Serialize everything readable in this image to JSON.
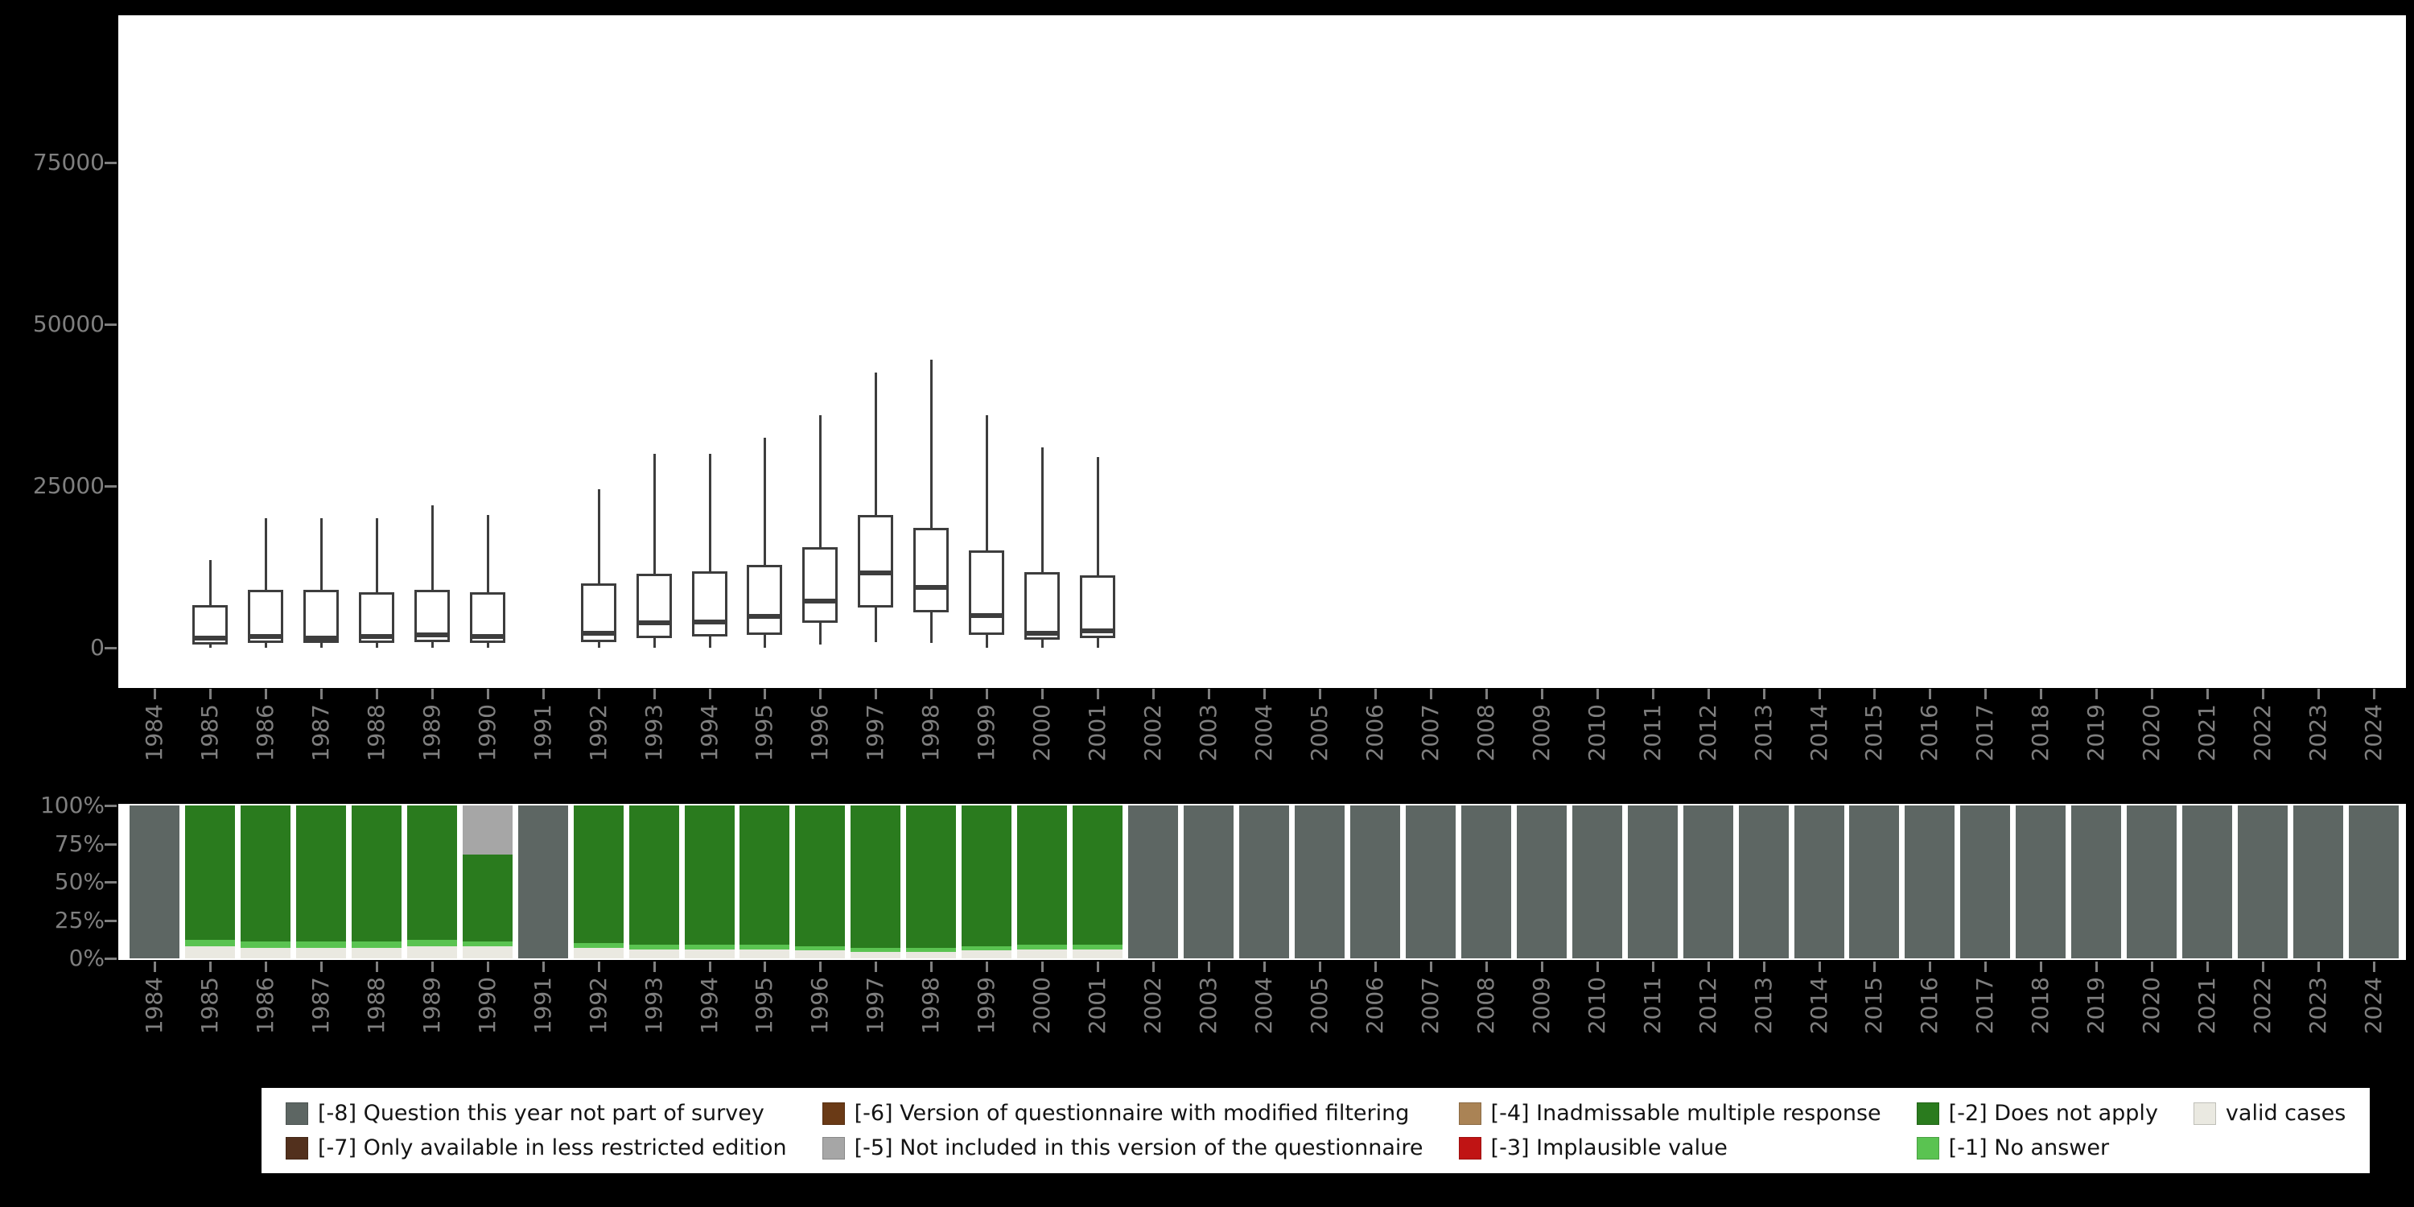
{
  "colors": {
    "page_background": "#000000",
    "panel_bg": "#ffffff",
    "axis_text": "#7f7f7f",
    "box_stroke": "#3d3d3d"
  },
  "legend": {
    "items": [
      {
        "code": "-8",
        "label": "[-8] Question this year not part of survey",
        "color": "#5d6663"
      },
      {
        "code": "-7",
        "label": "[-7] Only available in less restricted edition",
        "color": "#52301d"
      },
      {
        "code": "-6",
        "label": "[-6] Version of questionnaire with modified filtering",
        "color": "#6a3a16"
      },
      {
        "code": "-5",
        "label": "[-5] Not included in this version of the questionnaire",
        "color": "#a6a6a6"
      },
      {
        "code": "-4",
        "label": "[-4] Inadmissable multiple response",
        "color": "#aa8355"
      },
      {
        "code": "-3",
        "label": "[-3] Implausible value",
        "color": "#c01414"
      },
      {
        "code": "-2",
        "label": "[-2] Does not apply",
        "color": "#2a7b1e"
      },
      {
        "code": "-1",
        "label": "[-1] No answer",
        "color": "#5ac351"
      },
      {
        "code": "valid",
        "label": "valid cases",
        "color": "#eae9e1"
      }
    ]
  },
  "chart_data": [
    {
      "type": "boxplot",
      "title": "",
      "xlabel": "",
      "ylabel": "",
      "grid": false,
      "ylim": [
        0,
        97000
      ],
      "yticks": [
        {
          "value": 0,
          "label": "0"
        },
        {
          "value": 25000,
          "label": "25000"
        },
        {
          "value": 50000,
          "label": "50000"
        },
        {
          "value": 75000,
          "label": "75000"
        }
      ],
      "categories": [
        1984,
        1985,
        1986,
        1987,
        1988,
        1989,
        1990,
        1991,
        1992,
        1993,
        1994,
        1995,
        1996,
        1997,
        1998,
        1999,
        2000,
        2001,
        2002,
        2003,
        2004,
        2005,
        2006,
        2007,
        2008,
        2009,
        2010,
        2011,
        2012,
        2013,
        2014,
        2015,
        2016,
        2017,
        2018,
        2019,
        2020,
        2021,
        2022,
        2023,
        2024
      ],
      "boxes": [
        {
          "year": 1985,
          "min": 0,
          "q1": 500,
          "median": 1500,
          "q3": 6600,
          "max": 13500
        },
        {
          "year": 1986,
          "min": 0,
          "q1": 800,
          "median": 1700,
          "q3": 9000,
          "max": 20000
        },
        {
          "year": 1987,
          "min": 0,
          "q1": 700,
          "median": 1500,
          "q3": 8900,
          "max": 20000
        },
        {
          "year": 1988,
          "min": 0,
          "q1": 800,
          "median": 1700,
          "q3": 8600,
          "max": 20000
        },
        {
          "year": 1989,
          "min": 0,
          "q1": 900,
          "median": 2000,
          "q3": 9000,
          "max": 22000
        },
        {
          "year": 1990,
          "min": 0,
          "q1": 800,
          "median": 1800,
          "q3": 8600,
          "max": 20500
        },
        {
          "year": 1992,
          "min": 0,
          "q1": 900,
          "median": 2300,
          "q3": 10000,
          "max": 24500
        },
        {
          "year": 1993,
          "min": 0,
          "q1": 1500,
          "median": 3800,
          "q3": 11500,
          "max": 30000
        },
        {
          "year": 1994,
          "min": 0,
          "q1": 1800,
          "median": 4000,
          "q3": 11800,
          "max": 30000
        },
        {
          "year": 1995,
          "min": 0,
          "q1": 2000,
          "median": 4800,
          "q3": 12800,
          "max": 32500
        },
        {
          "year": 1996,
          "min": 500,
          "q1": 3800,
          "median": 7200,
          "q3": 15600,
          "max": 36000
        },
        {
          "year": 1997,
          "min": 900,
          "q1": 6200,
          "median": 11600,
          "q3": 20500,
          "max": 42500
        },
        {
          "year": 1998,
          "min": 700,
          "q1": 5500,
          "median": 9300,
          "q3": 18500,
          "max": 44500
        },
        {
          "year": 1999,
          "min": 0,
          "q1": 2000,
          "median": 5000,
          "q3": 15000,
          "max": 36000
        },
        {
          "year": 2000,
          "min": 0,
          "q1": 1300,
          "median": 2200,
          "q3": 11700,
          "max": 31000
        },
        {
          "year": 2001,
          "min": 0,
          "q1": 1500,
          "median": 2600,
          "q3": 11200,
          "max": 29500
        }
      ]
    },
    {
      "type": "stacked-bar-100",
      "title": "",
      "xlabel": "",
      "ylabel": "",
      "grid": false,
      "ylim_percent": [
        0,
        100
      ],
      "yticks": [
        {
          "value": 0,
          "label": "0%"
        },
        {
          "value": 25,
          "label": "25%"
        },
        {
          "value": 50,
          "label": "50%"
        },
        {
          "value": 75,
          "label": "75%"
        },
        {
          "value": 100,
          "label": "100%"
        }
      ],
      "categories": [
        1984,
        1985,
        1986,
        1987,
        1988,
        1989,
        1990,
        1991,
        1992,
        1993,
        1994,
        1995,
        1996,
        1997,
        1998,
        1999,
        2000,
        2001,
        2002,
        2003,
        2004,
        2005,
        2006,
        2007,
        2008,
        2009,
        2010,
        2011,
        2012,
        2013,
        2014,
        2015,
        2016,
        2017,
        2018,
        2019,
        2020,
        2021,
        2022,
        2023,
        2024
      ],
      "segment_order_bottom_to_top": [
        "valid",
        "-1",
        "-2",
        "-5",
        "-8"
      ],
      "bars": [
        {
          "year": 1984,
          "segments": [
            {
              "code": "-8",
              "pct": 100
            }
          ]
        },
        {
          "year": 1985,
          "segments": [
            {
              "code": "valid",
              "pct": 8
            },
            {
              "code": "-1",
              "pct": 4
            },
            {
              "code": "-2",
              "pct": 88
            }
          ]
        },
        {
          "year": 1986,
          "segments": [
            {
              "code": "valid",
              "pct": 7
            },
            {
              "code": "-1",
              "pct": 4
            },
            {
              "code": "-2",
              "pct": 89
            }
          ]
        },
        {
          "year": 1987,
          "segments": [
            {
              "code": "valid",
              "pct": 7
            },
            {
              "code": "-1",
              "pct": 4
            },
            {
              "code": "-2",
              "pct": 89
            }
          ]
        },
        {
          "year": 1988,
          "segments": [
            {
              "code": "valid",
              "pct": 7
            },
            {
              "code": "-1",
              "pct": 4
            },
            {
              "code": "-2",
              "pct": 89
            }
          ]
        },
        {
          "year": 1989,
          "segments": [
            {
              "code": "valid",
              "pct": 8
            },
            {
              "code": "-1",
              "pct": 4
            },
            {
              "code": "-2",
              "pct": 88
            }
          ]
        },
        {
          "year": 1990,
          "segments": [
            {
              "code": "valid",
              "pct": 8
            },
            {
              "code": "-1",
              "pct": 3
            },
            {
              "code": "-2",
              "pct": 57
            },
            {
              "code": "-5",
              "pct": 32
            }
          ]
        },
        {
          "year": 1991,
          "segments": [
            {
              "code": "-8",
              "pct": 100
            }
          ]
        },
        {
          "year": 1992,
          "segments": [
            {
              "code": "valid",
              "pct": 7
            },
            {
              "code": "-1",
              "pct": 3
            },
            {
              "code": "-2",
              "pct": 90
            }
          ]
        },
        {
          "year": 1993,
          "segments": [
            {
              "code": "valid",
              "pct": 6
            },
            {
              "code": "-1",
              "pct": 3
            },
            {
              "code": "-2",
              "pct": 91
            }
          ]
        },
        {
          "year": 1994,
          "segments": [
            {
              "code": "valid",
              "pct": 6
            },
            {
              "code": "-1",
              "pct": 3
            },
            {
              "code": "-2",
              "pct": 91
            }
          ]
        },
        {
          "year": 1995,
          "segments": [
            {
              "code": "valid",
              "pct": 6
            },
            {
              "code": "-1",
              "pct": 3
            },
            {
              "code": "-2",
              "pct": 91
            }
          ]
        },
        {
          "year": 1996,
          "segments": [
            {
              "code": "valid",
              "pct": 5
            },
            {
              "code": "-1",
              "pct": 3
            },
            {
              "code": "-2",
              "pct": 92
            }
          ]
        },
        {
          "year": 1997,
          "segments": [
            {
              "code": "valid",
              "pct": 4
            },
            {
              "code": "-1",
              "pct": 3
            },
            {
              "code": "-2",
              "pct": 93
            }
          ]
        },
        {
          "year": 1998,
          "segments": [
            {
              "code": "valid",
              "pct": 4
            },
            {
              "code": "-1",
              "pct": 3
            },
            {
              "code": "-2",
              "pct": 93
            }
          ]
        },
        {
          "year": 1999,
          "segments": [
            {
              "code": "valid",
              "pct": 5
            },
            {
              "code": "-1",
              "pct": 3
            },
            {
              "code": "-2",
              "pct": 92
            }
          ]
        },
        {
          "year": 2000,
          "segments": [
            {
              "code": "valid",
              "pct": 6
            },
            {
              "code": "-1",
              "pct": 3
            },
            {
              "code": "-2",
              "pct": 91
            }
          ]
        },
        {
          "year": 2001,
          "segments": [
            {
              "code": "valid",
              "pct": 6
            },
            {
              "code": "-1",
              "pct": 3
            },
            {
              "code": "-2",
              "pct": 91
            }
          ]
        },
        {
          "year": 2002,
          "segments": [
            {
              "code": "-8",
              "pct": 100
            }
          ]
        },
        {
          "year": 2003,
          "segments": [
            {
              "code": "-8",
              "pct": 100
            }
          ]
        },
        {
          "year": 2004,
          "segments": [
            {
              "code": "-8",
              "pct": 100
            }
          ]
        },
        {
          "year": 2005,
          "segments": [
            {
              "code": "-8",
              "pct": 100
            }
          ]
        },
        {
          "year": 2006,
          "segments": [
            {
              "code": "-8",
              "pct": 100
            }
          ]
        },
        {
          "year": 2007,
          "segments": [
            {
              "code": "-8",
              "pct": 100
            }
          ]
        },
        {
          "year": 2008,
          "segments": [
            {
              "code": "-8",
              "pct": 100
            }
          ]
        },
        {
          "year": 2009,
          "segments": [
            {
              "code": "-8",
              "pct": 100
            }
          ]
        },
        {
          "year": 2010,
          "segments": [
            {
              "code": "-8",
              "pct": 100
            }
          ]
        },
        {
          "year": 2011,
          "segments": [
            {
              "code": "-8",
              "pct": 100
            }
          ]
        },
        {
          "year": 2012,
          "segments": [
            {
              "code": "-8",
              "pct": 100
            }
          ]
        },
        {
          "year": 2013,
          "segments": [
            {
              "code": "-8",
              "pct": 100
            }
          ]
        },
        {
          "year": 2014,
          "segments": [
            {
              "code": "-8",
              "pct": 100
            }
          ]
        },
        {
          "year": 2015,
          "segments": [
            {
              "code": "-8",
              "pct": 100
            }
          ]
        },
        {
          "year": 2016,
          "segments": [
            {
              "code": "-8",
              "pct": 100
            }
          ]
        },
        {
          "year": 2017,
          "segments": [
            {
              "code": "-8",
              "pct": 100
            }
          ]
        },
        {
          "year": 2018,
          "segments": [
            {
              "code": "-8",
              "pct": 100
            }
          ]
        },
        {
          "year": 2019,
          "segments": [
            {
              "code": "-8",
              "pct": 100
            }
          ]
        },
        {
          "year": 2020,
          "segments": [
            {
              "code": "-8",
              "pct": 100
            }
          ]
        },
        {
          "year": 2021,
          "segments": [
            {
              "code": "-8",
              "pct": 100
            }
          ]
        },
        {
          "year": 2022,
          "segments": [
            {
              "code": "-8",
              "pct": 100
            }
          ]
        },
        {
          "year": 2023,
          "segments": [
            {
              "code": "-8",
              "pct": 100
            }
          ]
        },
        {
          "year": 2024,
          "segments": [
            {
              "code": "-8",
              "pct": 100
            }
          ]
        }
      ]
    }
  ]
}
